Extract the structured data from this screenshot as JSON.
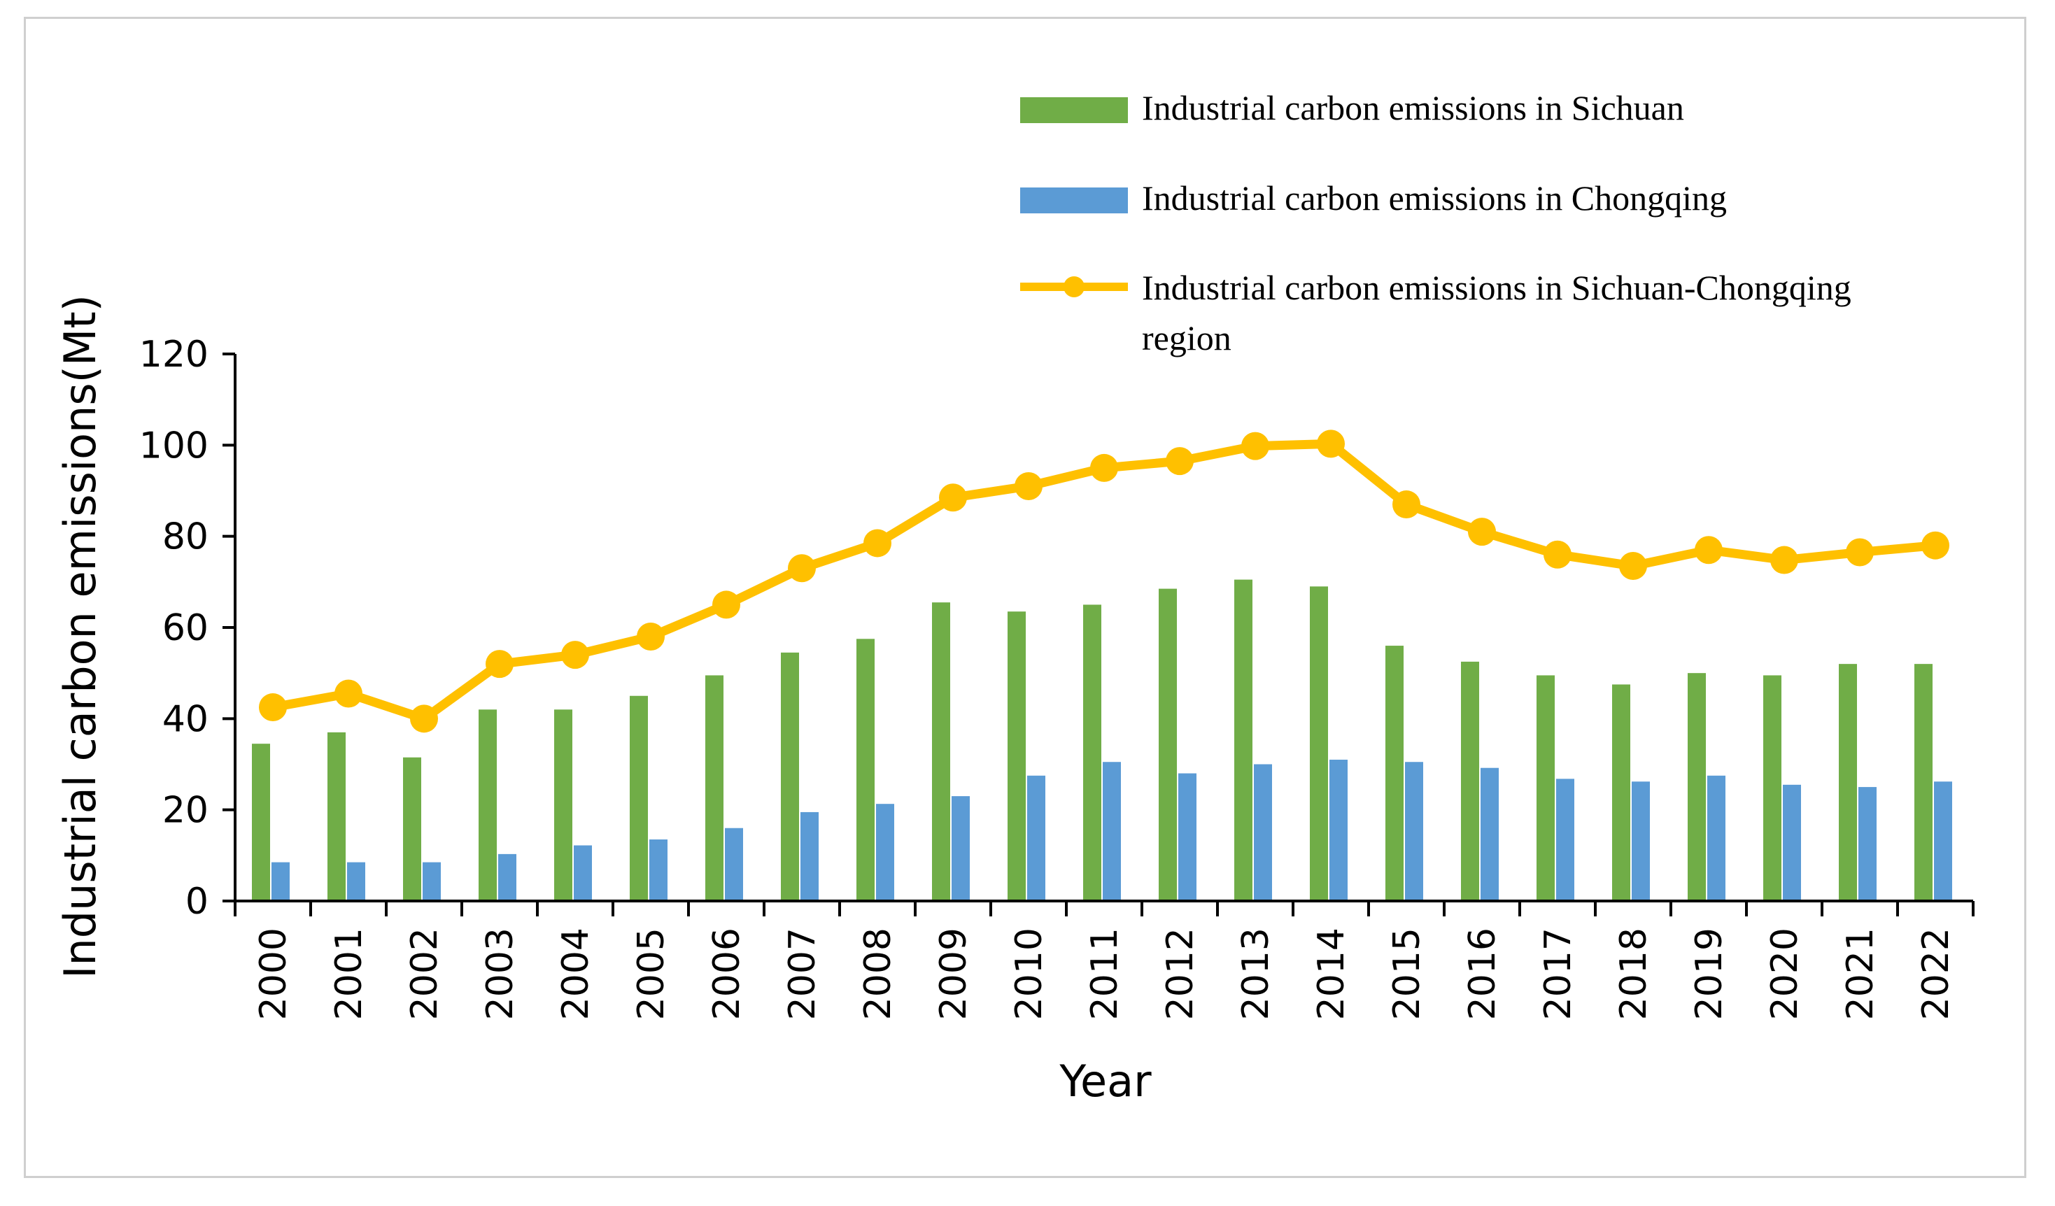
{
  "colors": {
    "sichuan": "#70ad47",
    "chongqing": "#5b9bd5",
    "region": "#ffc000",
    "axis": "#000000",
    "frame": "#cfcfcf"
  },
  "chart_data": {
    "type": "bar",
    "title": "",
    "xlabel": "Year",
    "ylabel": "Industrial carbon emissions(Mt)",
    "ylim": [
      0,
      120
    ],
    "yticks": [
      "0",
      "20",
      "40",
      "60",
      "80",
      "100",
      "120"
    ],
    "categories": [
      "2000",
      "2001",
      "2002",
      "2003",
      "2004",
      "2005",
      "2006",
      "2007",
      "2008",
      "2009",
      "2010",
      "2011",
      "2012",
      "2013",
      "2014",
      "2015",
      "2016",
      "2017",
      "2018",
      "2019",
      "2020",
      "2021",
      "2022"
    ],
    "series": [
      {
        "name": "Industrial carbon emissions in Sichuan",
        "kind": "bar",
        "values": [
          34.5,
          37,
          31.5,
          42,
          42,
          45,
          49.5,
          54.5,
          57.5,
          65.5,
          63.5,
          65,
          68.5,
          70.5,
          69,
          56,
          52.5,
          49.5,
          47.5,
          50,
          49.5,
          52,
          52
        ]
      },
      {
        "name": "Industrial carbon emissions in Chongqing",
        "kind": "bar",
        "values": [
          8.5,
          8.5,
          8.5,
          10.3,
          12.2,
          13.5,
          16,
          19.5,
          21.3,
          23,
          27.5,
          30.5,
          28,
          30,
          31,
          30.5,
          29.2,
          26.8,
          26.2,
          27.5,
          25.5,
          25,
          26.2
        ]
      },
      {
        "name": "Industrial carbon emissions in Sichuan-Chongqing region",
        "name_line1": "Industrial carbon emissions in Sichuan-Chongqing",
        "name_line2": "region",
        "kind": "line",
        "values": [
          42.5,
          45.5,
          40,
          52,
          54,
          58,
          65,
          73,
          78.5,
          88.5,
          91,
          95,
          96.5,
          99.8,
          100.3,
          87,
          81,
          76,
          73.5,
          77,
          74.8,
          76.5,
          78
        ]
      }
    ],
    "legend_position": "top-right"
  }
}
